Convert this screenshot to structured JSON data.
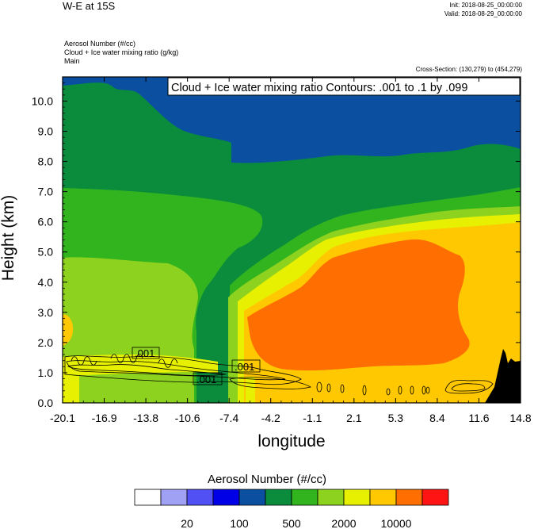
{
  "header": {
    "title": "W-E at 15S",
    "init": "Init: 2018-08-25_00:00:00",
    "valid": "Valid: 2018-08-29_00:00:00",
    "variables": [
      "Aerosol Number   (#/cc)",
      "Cloud + Ice water mixing ratio   (g/kg)",
      "Main"
    ],
    "cross_section": "Cross-Section: (130,279) to (454,279)"
  },
  "chart_data": {
    "type": "heatmap",
    "title": "W-E at 15S",
    "xlabel": "longitude",
    "ylabel": "Height (km)",
    "x_ticks": [
      "-20.1",
      "-16.9",
      "-13.8",
      "-10.6",
      "-7.4",
      "-4.2",
      "-1.1",
      "2.1",
      "5.3",
      "8.4",
      "11.6",
      "14.8"
    ],
    "y_ticks": [
      "0.0",
      "1.0",
      "2.0",
      "3.0",
      "4.0",
      "5.0",
      "6.0",
      "7.0",
      "8.0",
      "9.0",
      "10.0"
    ],
    "xlim": [
      -20.1,
      14.8
    ],
    "ylim": [
      0,
      10.8
    ],
    "overlay_label": "Cloud + Ice water mixing ratio Contours: .001 to .1 by .099",
    "contour_labels": [
      ".001",
      ".001",
      ".001"
    ],
    "colorbar": {
      "title": "Aerosol Number  (#/cc)",
      "colors": [
        "#ffffff",
        "#a0a0f5",
        "#5050f5",
        "#0000e6",
        "#0a4fa0",
        "#0a8c3c",
        "#32b41e",
        "#8cd21e",
        "#e6f000",
        "#ffc800",
        "#ff6e00",
        "#ff1414"
      ],
      "labels": [
        "20",
        "100",
        "500",
        "2000",
        "10000"
      ]
    },
    "terrain_color": "#000000"
  }
}
